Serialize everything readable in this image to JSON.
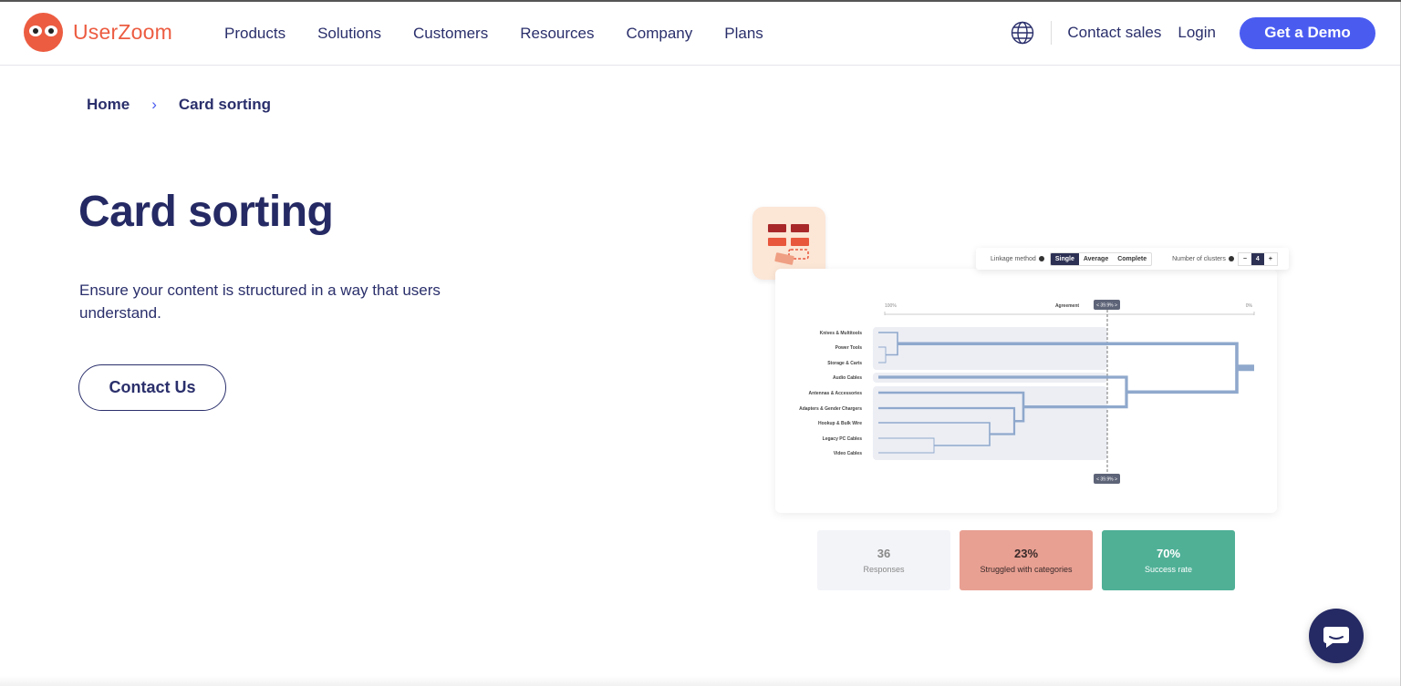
{
  "brand": {
    "name": "UserZoom",
    "color": "#ec5c41"
  },
  "nav": {
    "items": [
      "Products",
      "Solutions",
      "Customers",
      "Resources",
      "Company",
      "Plans"
    ],
    "contact_sales": "Contact sales",
    "login": "Login",
    "demo": "Get a Demo",
    "accent": "#4a5cf0"
  },
  "breadcrumb": {
    "home": "Home",
    "separator": "›",
    "current": "Card sorting"
  },
  "hero": {
    "title": "Card sorting",
    "description": "Ensure your content is structured in a way that users understand.",
    "cta": "Contact Us"
  },
  "dendrogram": {
    "linkage_label": "Linkage method",
    "methods": [
      "Single",
      "Average",
      "Complete"
    ],
    "selected_method": "Single",
    "clusters_label": "Number of clusters",
    "clusters_minus": "−",
    "clusters_value": "4",
    "clusters_plus": "+",
    "axis_left": "100%",
    "axis_title": "Agreement",
    "axis_right": "0%",
    "threshold": "< 39.9% >",
    "items": [
      "Knives & Multitools",
      "Power Tools",
      "Storage & Carts",
      "Audio Cables",
      "Antennas & Accessories",
      "Adapters & Gender Chargers",
      "Hookup & Bulk Wire",
      "Legacy PC Cables",
      "Video Cables"
    ]
  },
  "stats": [
    {
      "value": "36",
      "label": "Responses",
      "bg": "#f3f4f8",
      "color": "#888"
    },
    {
      "value": "23%",
      "label": "Struggled with categories",
      "bg": "#e8a092",
      "color": "#3a2a2a"
    },
    {
      "value": "70%",
      "label": "Success rate",
      "bg": "#4fb096",
      "color": "#fff"
    }
  ]
}
